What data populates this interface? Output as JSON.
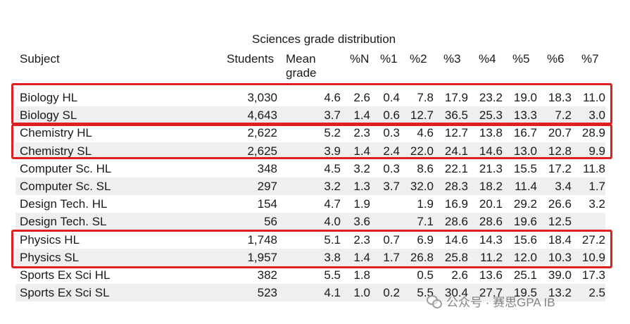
{
  "table": {
    "title": "Sciences grade distribution",
    "headers": {
      "subject": "Subject",
      "students": "Students",
      "mean_line1": "Mean",
      "mean_line2": "grade",
      "pN": "%N",
      "p1": "%1",
      "p2": "%2",
      "p3": "%3",
      "p4": "%4",
      "p5": "%5",
      "p6": "%6",
      "p7": "%7"
    },
    "rows": [
      {
        "subject": "Biology HL",
        "students": "3,030",
        "mean": "4.6",
        "pN": "2.6",
        "p1": "0.4",
        "p2": "7.8",
        "p3": "17.9",
        "p4": "23.2",
        "p5": "19.0",
        "p6": "18.3",
        "p7": "11.0"
      },
      {
        "subject": "Biology SL",
        "students": "4,643",
        "mean": "3.7",
        "pN": "1.4",
        "p1": "0.6",
        "p2": "12.7",
        "p3": "36.5",
        "p4": "25.3",
        "p5": "13.3",
        "p6": "7.2",
        "p7": "3.0"
      },
      {
        "subject": "Chemistry HL",
        "students": "2,622",
        "mean": "5.2",
        "pN": "2.3",
        "p1": "0.3",
        "p2": "4.6",
        "p3": "12.7",
        "p4": "13.8",
        "p5": "16.7",
        "p6": "20.7",
        "p7": "28.9"
      },
      {
        "subject": "Chemistry SL",
        "students": "2,625",
        "mean": "3.9",
        "pN": "1.4",
        "p1": "2.4",
        "p2": "22.0",
        "p3": "24.1",
        "p4": "14.6",
        "p5": "13.0",
        "p6": "12.8",
        "p7": "9.9"
      },
      {
        "subject": "Computer Sc. HL",
        "students": "348",
        "mean": "4.5",
        "pN": "3.2",
        "p1": "0.3",
        "p2": "8.6",
        "p3": "22.1",
        "p4": "21.3",
        "p5": "15.5",
        "p6": "17.2",
        "p7": "11.8"
      },
      {
        "subject": "Computer Sc. SL",
        "students": "297",
        "mean": "3.2",
        "pN": "1.3",
        "p1": "3.7",
        "p2": "32.0",
        "p3": "28.3",
        "p4": "18.2",
        "p5": "11.4",
        "p6": "3.4",
        "p7": "1.7"
      },
      {
        "subject": "Design Tech. HL",
        "students": "154",
        "mean": "4.7",
        "pN": "1.9",
        "p1": "",
        "p2": "1.9",
        "p3": "16.9",
        "p4": "20.1",
        "p5": "29.2",
        "p6": "26.6",
        "p7": "3.2"
      },
      {
        "subject": "Design Tech. SL",
        "students": "56",
        "mean": "4.0",
        "pN": "3.6",
        "p1": "",
        "p2": "7.1",
        "p3": "28.6",
        "p4": "28.6",
        "p5": "19.6",
        "p6": "12.5",
        "p7": ""
      },
      {
        "subject": "Physics HL",
        "students": "1,748",
        "mean": "5.1",
        "pN": "2.3",
        "p1": "0.7",
        "p2": "6.9",
        "p3": "14.6",
        "p4": "14.3",
        "p5": "15.6",
        "p6": "18.4",
        "p7": "27.2"
      },
      {
        "subject": "Physics SL",
        "students": "1,957",
        "mean": "3.8",
        "pN": "1.4",
        "p1": "1.7",
        "p2": "26.8",
        "p3": "25.8",
        "p4": "11.2",
        "p5": "12.0",
        "p6": "10.3",
        "p7": "10.9"
      },
      {
        "subject": "Sports Ex Sci HL",
        "students": "382",
        "mean": "5.5",
        "pN": "1.8",
        "p1": "",
        "p2": "0.5",
        "p3": "2.6",
        "p4": "13.6",
        "p5": "25.1",
        "p6": "39.0",
        "p7": "17.3"
      },
      {
        "subject": "Sports Ex Sci SL",
        "students": "523",
        "mean": "4.1",
        "pN": "1.0",
        "p1": "0.2",
        "p2": "5.5",
        "p3": "30.4",
        "p4": "27.7",
        "p5": "19.5",
        "p6": "13.2",
        "p7": "2.5"
      }
    ]
  },
  "highlights": {
    "color": "#e02020",
    "groups": [
      "Biology",
      "Chemistry",
      "Physics"
    ]
  },
  "watermark": {
    "icon": "wechat-icon",
    "text": "公众号 · 赛思GPA IB"
  }
}
